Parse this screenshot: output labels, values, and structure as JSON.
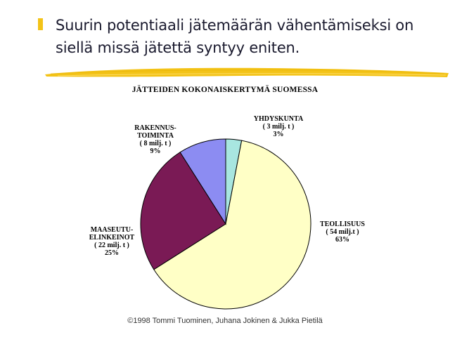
{
  "slide": {
    "headline_line1": "Suurin potentiaali jätemäärän vähentämiseksi on",
    "headline_line2": "siellä missä jätettä syntyy eniten.",
    "copyright": "©1998 Tommi Tuominen, Juhana Jokinen & Jukka Pietilä",
    "bullet_color": "#f3c318",
    "brush_color": "#f3c318"
  },
  "chart_data": {
    "type": "pie",
    "title": "JÄTTEIDEN KOKONAISKERTYMÄ SUOMESSA",
    "legend": "none",
    "slices": [
      {
        "name_lines": [
          "YHDYSKUNTA"
        ],
        "amount_text": "( 3 milj. t )",
        "percent_text": "3%",
        "value": 3,
        "color": "#a8e6e0"
      },
      {
        "name_lines": [
          "TEOLLISUUS"
        ],
        "amount_text": "( 54 milj.t )",
        "percent_text": "63%",
        "value": 63,
        "color": "#ffffc6"
      },
      {
        "name_lines": [
          "MAASEUTU-",
          "ELINKEINOT"
        ],
        "amount_text": "( 22 milj. t )",
        "percent_text": "25%",
        "value": 25,
        "color": "#7a1a55"
      },
      {
        "name_lines": [
          "RAKENNUS-",
          "TOIMINTA"
        ],
        "amount_text": "( 8 milj. t )",
        "percent_text": "9%",
        "value": 9,
        "color": "#8c8cf2"
      }
    ]
  }
}
